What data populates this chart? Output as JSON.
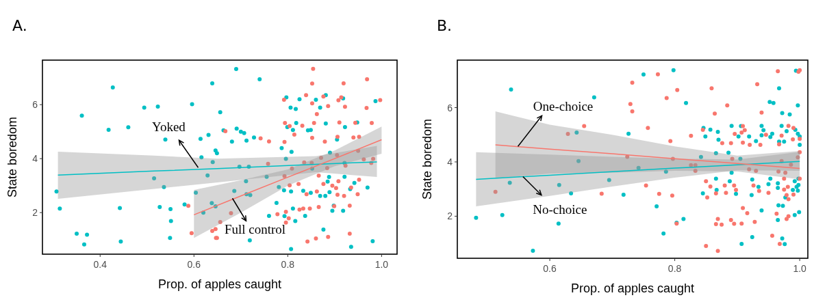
{
  "chart_data": [
    {
      "type": "scatter",
      "title": "A.",
      "xlabel": "Prop. of apples caught",
      "ylabel": "State boredom",
      "xlim": [
        0.277,
        1.033
      ],
      "ylim": [
        0.46,
        7.65
      ],
      "xticks": [
        0.4,
        0.6,
        0.8,
        {
          "value": 1,
          "label": "1.0"
        }
      ],
      "yticks": [
        2,
        4,
        6
      ],
      "grid": false,
      "series": [
        {
          "marker": "circle",
          "color": "#00bfc4",
          "x": [
            0.427,
            0.639,
            0.361,
            0.494,
            0.523,
            0.596,
            0.418,
            0.46,
            0.539,
            0.614,
            0.631,
            0.646,
            0.616,
            0.64,
            0.629,
            0.515,
            0.536,
            0.307,
            0.314,
            0.442,
            0.527,
            0.55,
            0.58,
            0.604,
            0.638,
            0.646,
            0.62,
            0.551,
            0.35,
            0.372,
            0.366,
            0.444,
            0.549,
            0.69,
            0.74,
            0.656,
            0.663,
            0.691,
            0.7,
            0.707,
            0.681,
            0.712,
            0.728,
            0.649,
            0.797,
            0.825,
            0.86,
            0.881,
            0.918,
            0.987,
            0.806,
            0.817,
            0.869,
            0.799,
            0.811,
            0.818,
            0.843,
            0.849,
            0.881,
            0.922,
            0.948,
            0.905,
            0.787,
            0.808,
            0.796,
            0.89,
            0.697,
            0.717,
            0.755,
            0.711,
            0.686,
            0.712,
            0.72,
            0.781,
            0.792,
            0.807,
            0.833,
            0.849,
            0.869,
            0.88,
            0.888,
            0.885,
            0.889,
            0.921,
            0.933,
            0.942,
            0.97,
            0.776,
            0.76,
            0.793,
            0.811,
            0.816,
            0.837,
            0.895,
            0.918,
            0.898,
            0.876,
            0.807,
            0.719,
            0.935,
            0.981,
            0.852,
            0.921
          ],
          "values": [
            6.64,
            6.79,
            5.59,
            5.89,
            5.93,
            6.02,
            5.07,
            5.16,
            4.71,
            4.73,
            4.88,
            4.3,
            4.05,
            3.87,
            3.38,
            3.27,
            2.95,
            2.78,
            2.15,
            2.17,
            2.21,
            2.13,
            2.3,
            2.74,
            2.35,
            2.23,
            2.0,
            1.69,
            1.22,
            1.18,
            0.82,
            0.93,
            1.06,
            7.32,
            6.94,
            5.72,
            5.05,
            5.11,
            5.0,
            4.95,
            4.63,
            4.67,
            4.78,
            4.2,
            6.27,
            6.2,
            6.18,
            6.35,
            6.23,
            6.13,
            5.89,
            5.84,
            5.89,
            5.17,
            5.06,
            5.32,
            5.05,
            5.06,
            5.3,
            5.17,
            5.34,
            4.71,
            4.39,
            4.25,
            3.99,
            4.22,
            3.7,
            3.7,
            3.33,
            3.16,
            2.8,
            2.68,
            2.65,
            2.95,
            2.83,
            2.78,
            2.81,
            2.73,
            2.62,
            2.62,
            3.32,
            3.15,
            2.76,
            3.33,
            2.87,
            3.1,
            2.93,
            2.36,
            1.88,
            1.87,
            2.15,
            1.69,
            1.88,
            2.07,
            2.07,
            2.26,
            1.37,
            0.65,
            0.97,
            0.73,
            0.94,
            3.63,
            3.84
          ]
        },
        {
          "marker": "circle",
          "color": "#f8766d",
          "x": [
            0.588,
            0.595,
            0.639,
            0.646,
            0.649,
            0.854,
            0.852,
            0.919,
            0.969,
            0.792,
            0.839,
            0.852,
            0.876,
            0.886,
            0.908,
            0.914,
            0.922,
            0.968,
            0.997,
            0.862,
            0.794,
            0.804,
            0.831,
            0.856,
            0.91,
            0.944,
            0.979,
            0.814,
            0.852,
            0.879,
            0.906,
            0.94,
            0.952,
            0.742,
            0.76,
            0.793,
            0.667,
            0.871,
            0.905,
            0.95,
            0.962,
            0.982,
            0.758,
            0.809,
            0.835,
            0.851,
            0.884,
            0.923,
            0.978,
            0.793,
            0.866,
            0.804,
            0.823,
            0.876,
            0.895,
            0.903,
            0.908,
            0.952,
            0.935,
            0.949,
            0.84,
            0.862,
            0.906,
            0.92,
            0.866,
            0.899,
            0.932,
            0.825,
            0.833,
            0.847,
            0.778,
            0.796,
            0.802,
            0.796,
            0.679,
            0.656,
            0.647,
            0.886,
            0.86,
            0.842,
            0.932
          ],
          "values": [
            2.25,
            1.24,
            1.32,
            1.39,
            1.06,
            7.33,
            6.78,
            6.79,
            6.94,
            6.18,
            6.35,
            6.05,
            6.3,
            5.95,
            6.16,
            6.27,
            5.92,
            5.88,
            6.17,
            5.65,
            5.32,
            5.21,
            5.22,
            5.32,
            5.34,
            5.33,
            5.32,
            4.89,
            4.77,
            4.63,
            4.81,
            4.78,
            4.81,
            4.75,
            4.64,
            4.62,
            5.02,
            4.03,
            4.13,
            4.29,
            3.97,
            3.99,
            3.81,
            3.63,
            3.86,
            3.84,
            3.65,
            3.74,
            3.84,
            3.35,
            3.37,
            3.01,
            3.06,
            3.06,
            3.0,
            2.91,
            3.16,
            3.22,
            2.93,
            2.68,
            2.68,
            2.78,
            2.66,
            2.62,
            2.21,
            2.24,
            2.26,
            2.11,
            2.15,
            2.15,
            1.94,
            2.03,
            1.79,
            1.63,
            1.98,
            1.65,
            1.06,
            1.1,
            1.04,
            0.93,
            1.22
          ]
        },
        {
          "type": "line",
          "color": "#00bfc4",
          "x": [
            0.31,
            0.515,
            0.65,
            0.86,
            0.99
          ],
          "values": [
            3.39,
            3.54,
            3.63,
            3.79,
            3.88
          ],
          "lower": [
            2.51,
            2.88,
            3.12,
            3.5,
            3.32
          ],
          "upper": [
            4.26,
            4.11,
            4.0,
            4.09,
            4.47
          ]
        },
        {
          "type": "line",
          "color": "#f8766d",
          "x": [
            0.6,
            0.7,
            0.8,
            0.9,
            1.0
          ],
          "values": [
            1.92,
            2.62,
            3.31,
            4.0,
            4.7
          ],
          "lower": [
            1.06,
            2.0,
            3.0,
            3.72,
            4.18
          ],
          "upper": [
            2.84,
            3.2,
            3.6,
            4.3,
            5.19
          ]
        }
      ],
      "annotations": [
        {
          "text": "Yoked",
          "x": 0.609,
          "y": 3.67
        },
        {
          "text": "Full control",
          "x": 0.682,
          "y": 2.53
        }
      ]
    },
    {
      "type": "scatter",
      "title": "B.",
      "xlabel": "Prop. of apples caught",
      "ylabel": "State boredom",
      "xlim": [
        0.452,
        1.013
      ],
      "ylim": [
        0.45,
        7.75
      ],
      "xticks": [
        0.6,
        0.8,
        {
          "value": 1,
          "label": "1.0"
        }
      ],
      "yticks": [
        2,
        4,
        6
      ],
      "grid": false,
      "series": [
        {
          "marker": "circle",
          "color": "#00bfc4",
          "x": [
            0.538,
            0.671,
            0.643,
            0.726,
            0.646,
            0.536,
            0.615,
            0.634,
            0.695,
            0.718,
            0.482,
            0.524,
            0.614,
            0.573,
            0.75,
            0.798,
            0.818,
            0.846,
            0.849,
            0.857,
            0.869,
            0.87,
            0.891,
            0.902,
            0.906,
            0.919,
            0.93,
            0.939,
            0.942,
            0.939,
            0.956,
            0.953,
            0.952,
            0.958,
            0.967,
            0.972,
            0.984,
            0.971,
            0.979,
            0.967,
            0.975,
            0.993,
            0.997,
            1.0,
            1.0,
            0.997,
            0.994,
            0.842,
            0.866,
            0.886,
            0.905,
            0.891,
            0.742,
            0.786,
            0.866,
            0.888,
            0.867,
            0.845,
            0.898,
            0.924,
            0.923,
            0.934,
            0.95,
            0.953,
            0.965,
            0.965,
            0.977,
            0.989,
            0.992,
            0.995,
            0.997,
            0.998,
            0.998,
            0.771,
            0.803,
            0.814,
            0.939,
            0.966,
            0.973,
            0.965,
            0.999,
            0.992,
            0.782,
            0.907,
            0.924,
            0.972,
            0.976
          ],
          "values": [
            6.67,
            6.38,
            5.08,
            5.04,
            4.03,
            3.23,
            3.15,
            2.84,
            3.33,
            2.79,
            1.94,
            2.04,
            1.73,
            0.73,
            7.22,
            7.38,
            6.17,
            5.25,
            4.94,
            5.19,
            5.11,
            4.82,
            5.33,
            4.94,
            5.32,
            4.94,
            4.77,
            5.33,
            5.17,
            4.98,
            5.04,
            4.92,
            6.21,
            6.17,
            6.71,
            5.8,
            5.75,
            5.33,
            5.13,
            4.75,
            4.75,
            5.18,
            5.04,
            4.94,
            4.63,
            6.08,
            7.36,
            4.18,
            4.32,
            4.34,
            4.11,
            3.6,
            3.78,
            3.64,
            3.38,
            3.29,
            2.97,
            2.84,
            2.82,
            3.35,
            2.78,
            3.08,
            3.18,
            3.38,
            3.21,
            3.04,
            2.69,
            2.97,
            3.29,
            3.08,
            2.94,
            3.15,
            3.38,
            2.36,
            1.76,
            1.9,
            2.21,
            2.4,
            2.38,
            1.86,
            2.15,
            2.04,
            1.36,
            0.98,
            1.23,
            1.18,
            0.97
          ]
        },
        {
          "marker": "circle",
          "color": "#f8766d",
          "x": [
            0.655,
            0.629,
            0.513,
            0.683,
            0.724,
            0.729,
            0.732,
            0.732,
            0.773,
            0.804,
            0.787,
            0.757,
            0.826,
            0.793,
            0.859,
            0.884,
            0.864,
            0.932,
            0.939,
            0.965,
            0.998,
            1.0,
            0.845,
            0.896,
            0.907,
            0.909,
            0.912,
            0.909,
            0.92,
            0.89,
            0.876,
            0.937,
            0.946,
            0.967,
            0.971,
            0.982,
            0.99,
            0.989,
            1.0,
            1.0,
            0.997,
            0.971,
            0.892,
            0.826,
            0.833,
            0.833,
            0.797,
            0.919,
            0.93,
            0.966,
            0.977,
            0.986,
            1.0,
            0.975,
            0.85,
            0.857,
            0.88,
            0.895,
            0.898,
            0.882,
            0.866,
            0.852,
            0.926,
            0.935,
            0.95,
            0.975,
            0.981,
            0.979,
            0.99,
            0.982,
            0.754,
            0.775,
            0.796,
            0.909,
            0.916,
            0.963,
            0.982,
            0.979,
            0.928,
            0.89,
            0.895,
            0.907,
            0.869,
            0.866,
            0.875,
            0.803,
            0.956,
            0.968,
            0.85,
            0.869
          ],
          "values": [
            5.32,
            5.03,
            2.9,
            2.83,
            4.19,
            6.13,
            5.86,
            6.92,
            7.23,
            6.65,
            6.35,
            5.25,
            4.96,
            4.77,
            6.71,
            6.08,
            5.78,
            6.86,
            5.82,
            7.34,
            7.32,
            7.38,
            5.18,
            5.03,
            5.08,
            5.32,
            5.17,
            4.71,
            4.63,
            4.69,
            4.69,
            4.63,
            5.0,
            4.65,
            4.97,
            5.33,
            5.25,
            4.83,
            4.85,
            4.36,
            4.17,
            4.03,
            4.11,
            3.88,
            3.88,
            3.67,
            4.11,
            3.73,
            3.67,
            3.65,
            3.6,
            3.9,
            3.38,
            3.38,
            3.29,
            3.09,
            3.13,
            3.13,
            2.97,
            2.86,
            2.84,
            2.69,
            3.13,
            2.93,
            2.86,
            2.98,
            3.08,
            2.78,
            2.8,
            2.63,
            3.13,
            2.82,
            2.76,
            2.3,
            2.11,
            2.09,
            2.0,
            1.9,
            1.79,
            1.86,
            1.72,
            1.73,
            1.9,
            1.71,
            1.69,
            1.73,
            1.28,
            0.98,
            0.9,
            0.72
          ]
        },
        {
          "type": "line",
          "color": "#00bfc4",
          "x": [
            0.482,
            0.6,
            0.7,
            0.8,
            0.9,
            1.0
          ],
          "values": [
            3.36,
            3.51,
            3.64,
            3.77,
            3.89,
            4.02
          ],
          "lower": [
            2.36,
            2.75,
            3.09,
            3.42,
            3.69,
            3.67
          ],
          "upper": [
            4.36,
            4.27,
            4.19,
            4.12,
            4.09,
            4.37
          ]
        },
        {
          "type": "line",
          "color": "#f8766d",
          "x": [
            0.513,
            0.6,
            0.7,
            0.8,
            0.9,
            1.0
          ],
          "values": [
            4.63,
            4.47,
            4.3,
            4.12,
            3.94,
            3.76
          ],
          "lower": [
            3.4,
            3.57,
            3.6,
            3.67,
            3.65,
            3.36
          ],
          "upper": [
            5.86,
            5.37,
            5.0,
            4.57,
            4.23,
            4.4
          ]
        }
      ],
      "annotations": [
        {
          "text": "One-choice",
          "x": 0.549,
          "y": 4.57
        },
        {
          "text": "No-choice",
          "x": 0.557,
          "y": 3.46
        }
      ]
    }
  ]
}
